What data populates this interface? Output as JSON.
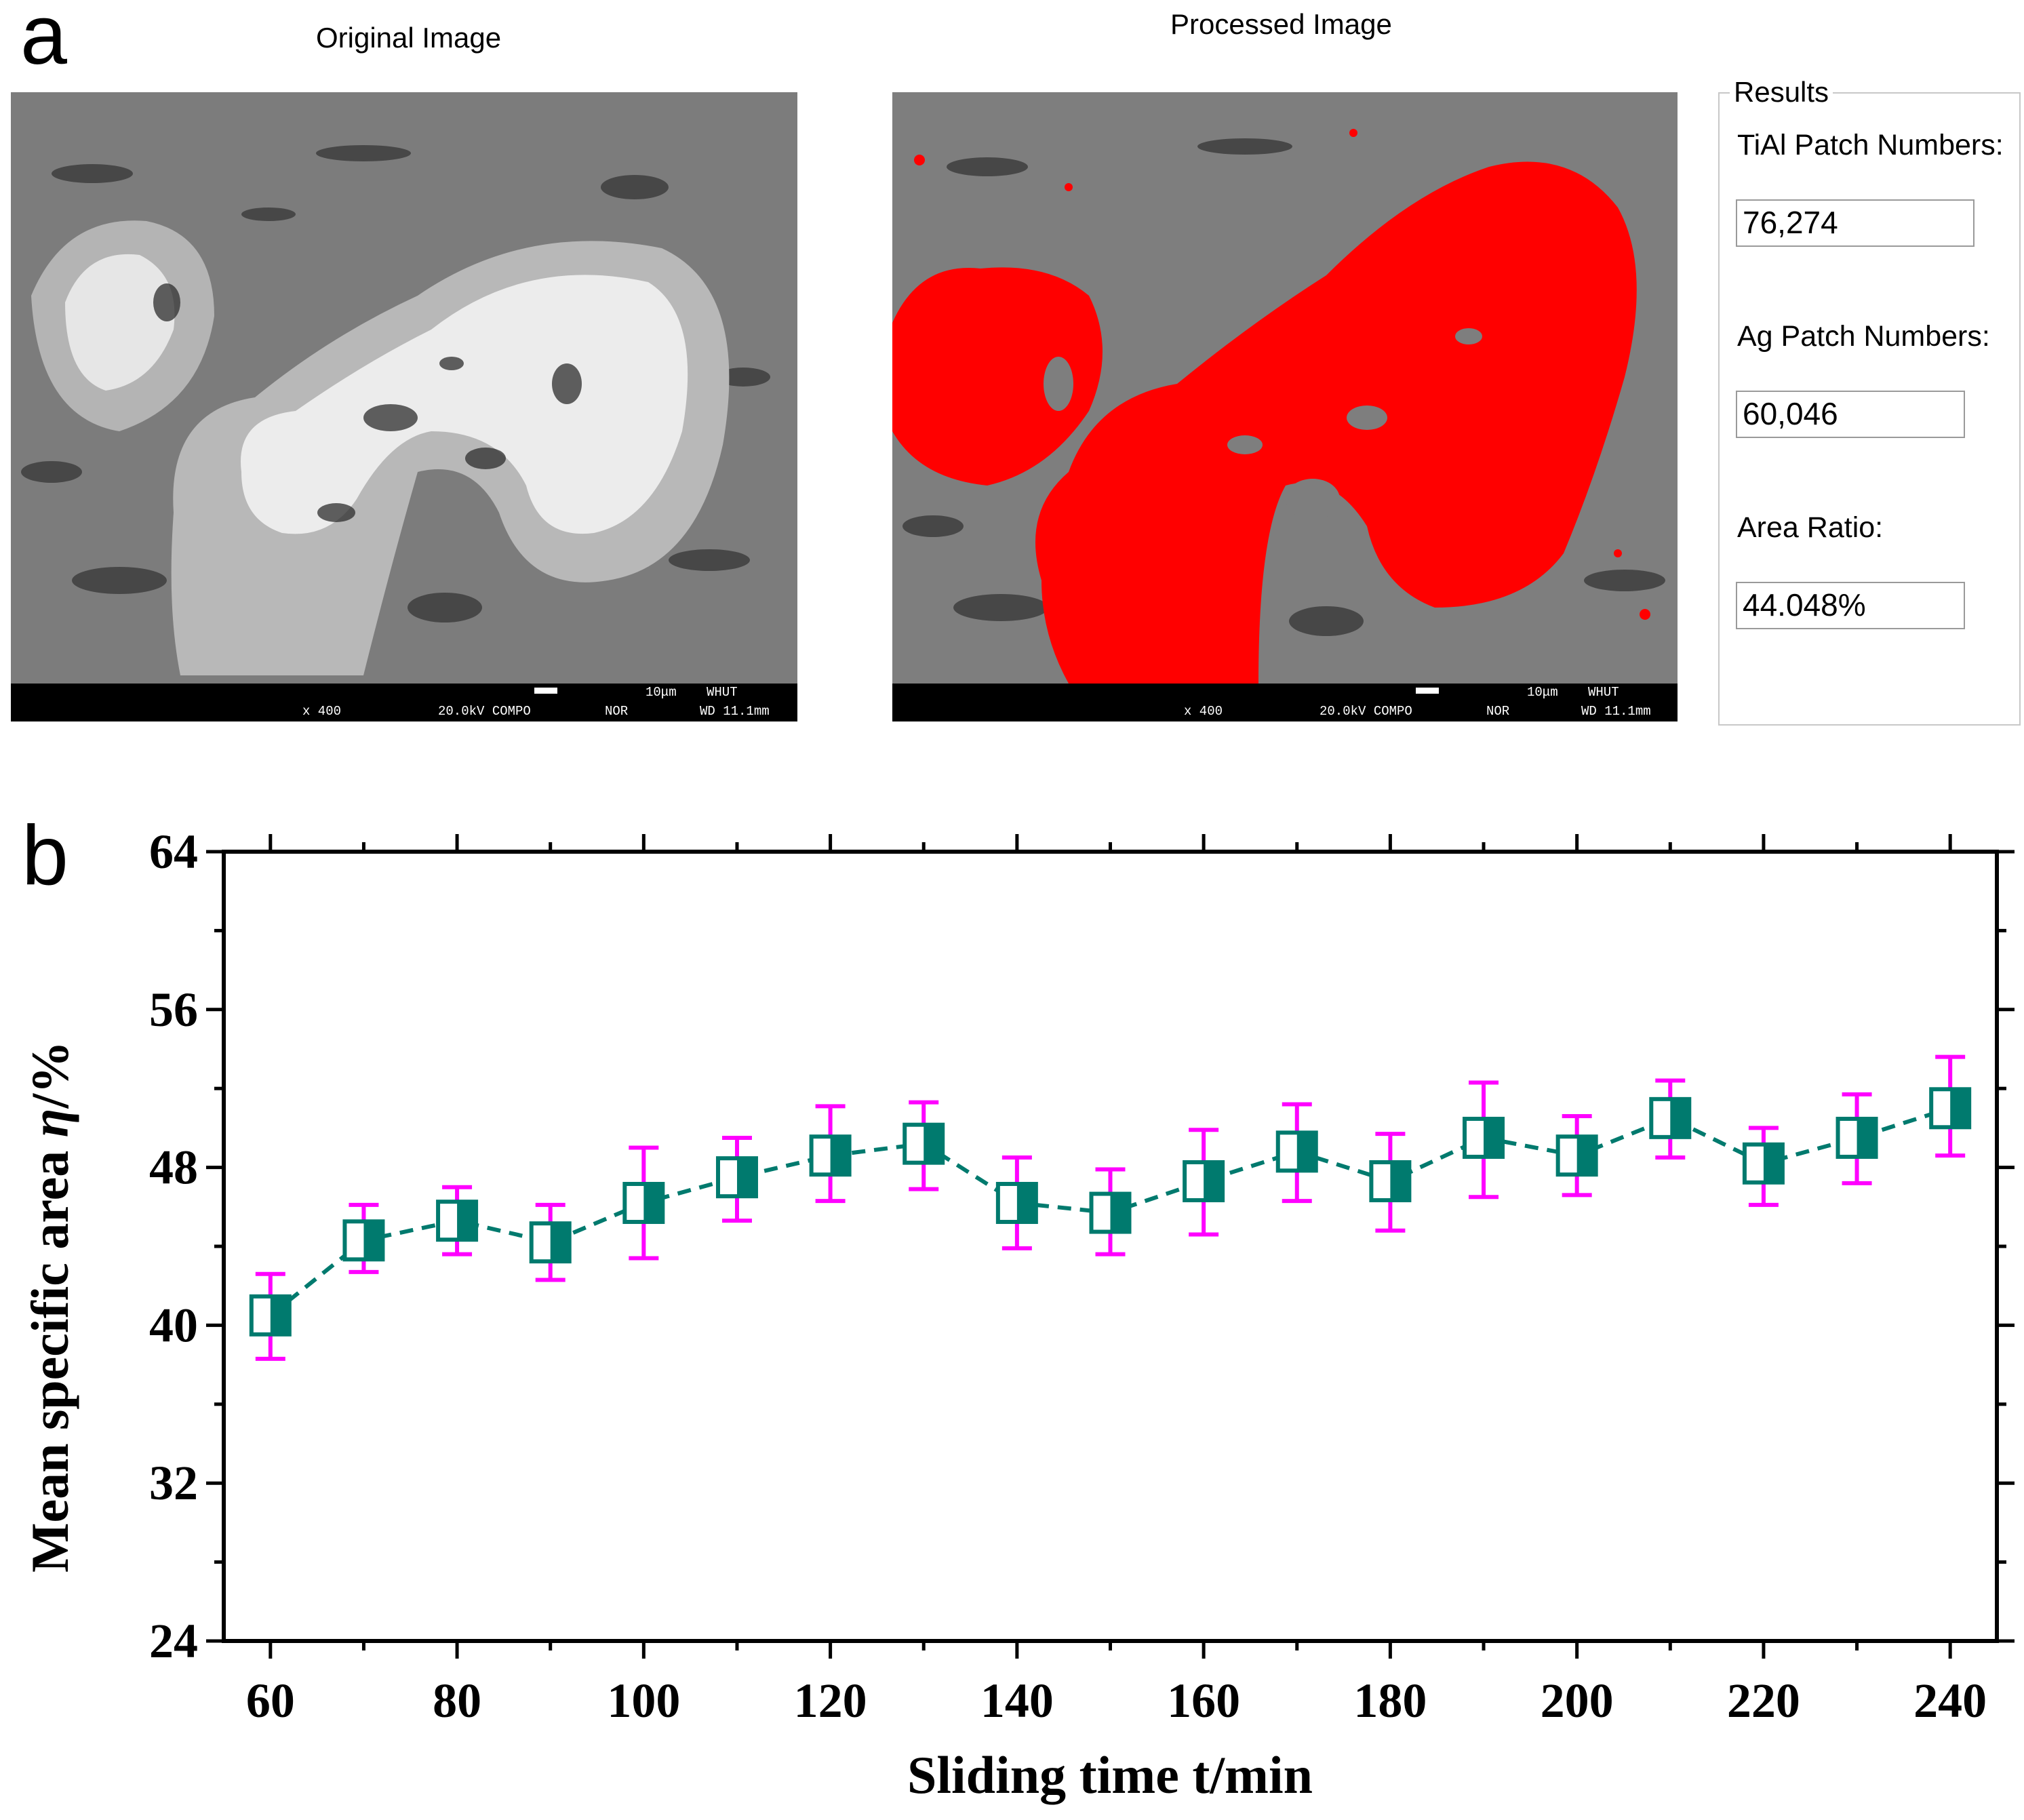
{
  "panel_a": {
    "label": "a",
    "original_title": "Original Image",
    "processed_title": "Processed Image",
    "sem_info": {
      "scale": "10μm",
      "lab": "WHUT",
      "magnification": "x 400",
      "voltage": "20.0kV COMPO",
      "mode": "NOR",
      "wd": "WD 11.1mm"
    },
    "results": {
      "legend": "Results",
      "tial_label": "TiAl Patch Numbers:",
      "tial_value": "76,274",
      "ag_label": "Ag Patch Numbers:",
      "ag_value": "60,046",
      "ratio_label": "Area Ratio:",
      "ratio_value": "44.048%"
    }
  },
  "panel_b": {
    "label": "b"
  },
  "colors": {
    "marker": "#007a6e",
    "error_bar": "#ff00ff",
    "highlight": "#ff0000",
    "axis": "#000000"
  },
  "chart_data": {
    "type": "scatter",
    "title": "",
    "xlabel": "Sliding time t/min",
    "ylabel": "Mean specific area η/%",
    "xlim": [
      55,
      245
    ],
    "ylim": [
      24,
      64
    ],
    "xticks": [
      60,
      80,
      100,
      120,
      140,
      160,
      180,
      200,
      220,
      240
    ],
    "yticks": [
      24,
      32,
      40,
      48,
      56,
      64
    ],
    "series": [
      {
        "name": "Mean specific area",
        "marker": "half-filled square",
        "line": "dashed",
        "x": [
          60,
          70,
          80,
          90,
          100,
          110,
          120,
          130,
          140,
          150,
          160,
          170,
          180,
          190,
          200,
          210,
          220,
          230,
          240
        ],
        "y": [
          40.5,
          44.3,
          45.3,
          44.2,
          46.2,
          47.5,
          48.6,
          49.2,
          46.2,
          45.7,
          47.3,
          48.8,
          47.3,
          49.5,
          48.6,
          50.5,
          48.2,
          49.5,
          51.0
        ],
        "err_low": [
          2.2,
          1.6,
          1.7,
          1.9,
          2.8,
          2.2,
          2.3,
          2.3,
          2.3,
          2.1,
          2.7,
          2.5,
          2.5,
          3.0,
          2.0,
          2.0,
          2.1,
          2.3,
          2.4
        ],
        "err_high": [
          2.1,
          1.8,
          1.7,
          1.9,
          2.8,
          2.0,
          2.5,
          2.1,
          2.3,
          2.2,
          2.6,
          2.4,
          2.4,
          2.8,
          2.0,
          1.9,
          1.8,
          2.2,
          2.6
        ]
      }
    ]
  }
}
